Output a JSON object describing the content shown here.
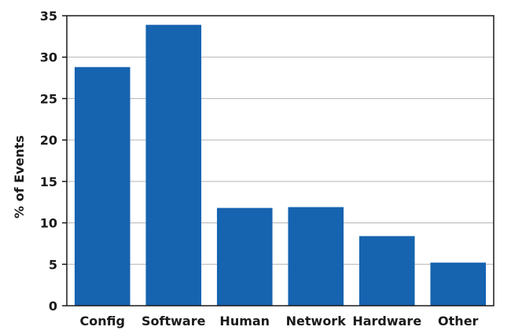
{
  "chart_data": {
    "type": "bar",
    "title": "",
    "xlabel": "",
    "ylabel": "% of Events",
    "categories": [
      "Config",
      "Software",
      "Human",
      "Network",
      "Hardware",
      "Other"
    ],
    "values": [
      28.8,
      33.9,
      11.8,
      11.9,
      8.4,
      5.2
    ],
    "ylim": [
      0,
      35
    ],
    "yticks": [
      0,
      5,
      10,
      15,
      20,
      25,
      30,
      35
    ],
    "grid": true,
    "legend": "none",
    "colors": {
      "bar": "#1663b0",
      "grid": "#b3b3b3",
      "axis": "#1a1a1a"
    }
  }
}
